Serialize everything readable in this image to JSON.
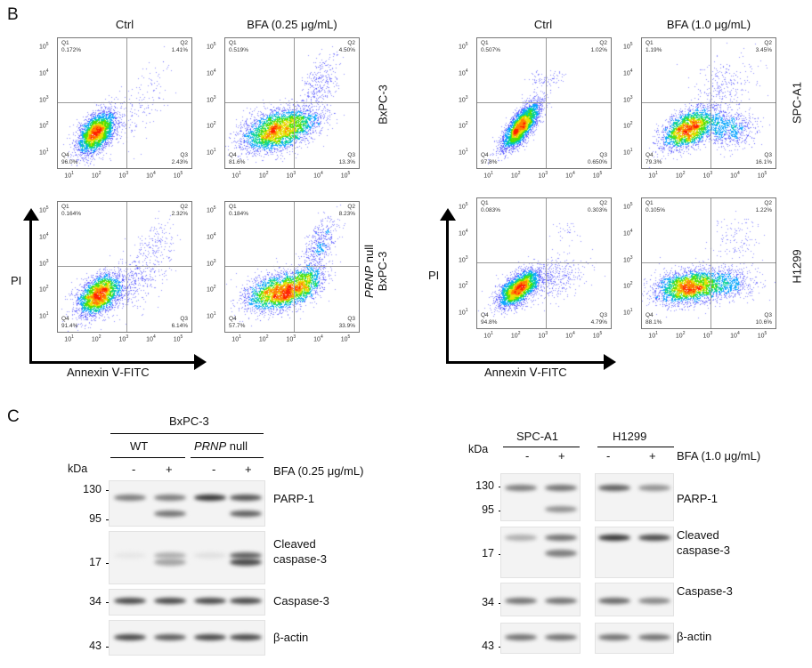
{
  "panel_b": {
    "letter": "B",
    "left": {
      "col_titles": [
        "Ctrl",
        "BFA (0.25 μg/mL)"
      ],
      "row_labels": [
        "BxPC-3",
        "PRNP null BxPC-3"
      ],
      "row_label_italic_part": "PRNP",
      "y_axis_label": "PI",
      "x_axis_label": "Annexin Ⅴ-FITC"
    },
    "right": {
      "col_titles": [
        "Ctrl",
        "BFA (1.0 μg/mL)"
      ],
      "row_labels": [
        "SPC-A1",
        "H1299"
      ],
      "y_axis_label": "PI",
      "x_axis_label": "Annexin Ⅴ-FITC"
    },
    "quadrant_names": [
      "Q1",
      "Q2",
      "Q3",
      "Q4"
    ],
    "tick_labels": [
      "10",
      "10",
      "10",
      "10",
      "10"
    ],
    "tick_exponents": [
      "1",
      "2",
      "3",
      "4",
      "5"
    ],
    "plots": [
      {
        "id": "bxpc3-ctrl",
        "Q1": "0.172%",
        "Q2": "1.41%",
        "Q3": "2.43%",
        "Q4": "96.0%"
      },
      {
        "id": "bxpc3-bfa",
        "Q1": "0.519%",
        "Q2": "4.50%",
        "Q3": "13.3%",
        "Q4": "81.6%"
      },
      {
        "id": "prnpnull-ctrl",
        "Q1": "0.164%",
        "Q2": "2.32%",
        "Q3": "6.14%",
        "Q4": "91.4%"
      },
      {
        "id": "prnpnull-bfa",
        "Q1": "0.184%",
        "Q2": "8.23%",
        "Q3": "33.9%",
        "Q4": "57.7%"
      },
      {
        "id": "spca1-ctrl",
        "Q1": "0.507%",
        "Q2": "1.02%",
        "Q3": "0.650%",
        "Q4": "97.8%"
      },
      {
        "id": "spca1-bfa",
        "Q1": "1.19%",
        "Q2": "3.45%",
        "Q3": "16.1%",
        "Q4": "79.3%"
      },
      {
        "id": "h1299-ctrl",
        "Q1": "0.083%",
        "Q2": "0.303%",
        "Q3": "4.79%",
        "Q4": "94.8%"
      },
      {
        "id": "h1299-bfa",
        "Q1": "0.105%",
        "Q2": "1.22%",
        "Q3": "10.6%",
        "Q4": "88.1%"
      }
    ]
  },
  "panel_c": {
    "letter": "C",
    "left": {
      "cell_line": "BxPC-3",
      "groups": [
        {
          "label": "WT",
          "italic": ""
        },
        {
          "label": " null",
          "italic": "PRNP"
        }
      ],
      "kda_label": "kDa",
      "treatment_signs": [
        "-",
        "+",
        "-",
        "+"
      ],
      "treatment_label": "BFA (0.25 μg/mL)",
      "markers": [
        "130",
        "95",
        "17",
        "34",
        "43"
      ],
      "rows": [
        {
          "label": "PARP-1",
          "bands": [
            [
              0.55,
              0
            ],
            [
              0.55,
              0.6
            ],
            [
              0.9,
              0
            ],
            [
              0.75,
              0.7
            ]
          ]
        },
        {
          "label": "Cleaved caspase-3",
          "bands": [
            [
              0.02,
              0
            ],
            [
              0.3,
              0.35
            ],
            [
              0.05,
              0
            ],
            [
              0.7,
              0.8
            ]
          ]
        },
        {
          "label": "Caspase-3",
          "bands": [
            [
              0.8
            ],
            [
              0.8
            ],
            [
              0.8
            ],
            [
              0.8
            ]
          ]
        },
        {
          "label": "β-actin",
          "bands": [
            [
              0.8
            ],
            [
              0.7
            ],
            [
              0.8
            ],
            [
              0.8
            ]
          ]
        }
      ]
    },
    "right": {
      "cell_lines": [
        "SPC-A1",
        "H1299"
      ],
      "kda_label": "kDa",
      "treatment_signs": [
        "-",
        "+",
        "-",
        "+"
      ],
      "treatment_label": "BFA (1.0 μg/mL)",
      "markers": [
        "130",
        "95",
        "17",
        "34",
        "43"
      ],
      "rows": [
        {
          "label": "PARP-1",
          "bands": [
            [
              0.55,
              0
            ],
            [
              0.6,
              0.45
            ],
            [
              0.7,
              0
            ],
            [
              0.45,
              0
            ]
          ]
        },
        {
          "label": "Cleaved caspase-3",
          "bands": [
            [
              0.3,
              0
            ],
            [
              0.6,
              0.55
            ],
            [
              0.9,
              0
            ],
            [
              0.8,
              0
            ]
          ]
        },
        {
          "label": "Caspase-3",
          "bands": [
            [
              0.6
            ],
            [
              0.6
            ],
            [
              0.65
            ],
            [
              0.5
            ]
          ]
        },
        {
          "label": "β-actin",
          "bands": [
            [
              0.6
            ],
            [
              0.6
            ],
            [
              0.6
            ],
            [
              0.6
            ]
          ]
        }
      ]
    }
  }
}
